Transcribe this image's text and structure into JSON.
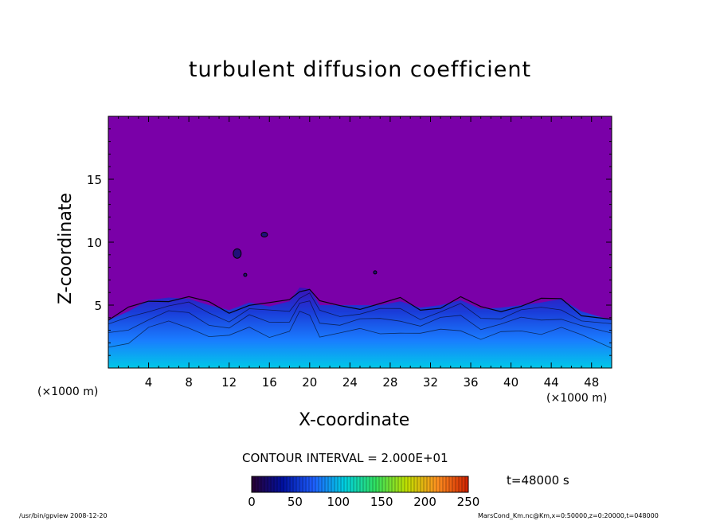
{
  "chart_data": {
    "type": "heatmap",
    "title": "turbulent diffusion coefficient",
    "xlabel": "X-coordinate",
    "ylabel": "Z-coordinate",
    "x_unit": "(×1000 m)",
    "y_unit": "(×1000 m)",
    "xlim": [
      0,
      50
    ],
    "ylim": [
      0,
      20
    ],
    "x_ticks": [
      4,
      8,
      12,
      16,
      20,
      24,
      28,
      32,
      36,
      40,
      44,
      48
    ],
    "y_ticks": [
      5,
      10,
      15
    ],
    "contour_interval": "CONTOUR INTERVAL = 2.000E+01",
    "time_label": "t=48000 s",
    "colorbar": {
      "min": 0,
      "max": 250,
      "ticks": [
        0,
        50,
        100,
        150,
        200,
        250
      ],
      "colors": [
        "#2a0033",
        "#0010a0",
        "#1e5fff",
        "#00d0e0",
        "#30e060",
        "#c0e000",
        "#ff9020",
        "#d02000"
      ]
    },
    "background_color": "#7a00a8",
    "turbulent_layer_top": [
      [
        0,
        3.8
      ],
      [
        2,
        4.5
      ],
      [
        4,
        5.4
      ],
      [
        6,
        5.6
      ],
      [
        8,
        5.5
      ],
      [
        10,
        5.0
      ],
      [
        12,
        4.6
      ],
      [
        14,
        5.2
      ],
      [
        16,
        4.9
      ],
      [
        18,
        5.3
      ],
      [
        19,
        6.4
      ],
      [
        20,
        6.3
      ],
      [
        21,
        5.0
      ],
      [
        23,
        5.0
      ],
      [
        25,
        5.0
      ],
      [
        27,
        5.0
      ],
      [
        29,
        5.3
      ],
      [
        31,
        4.8
      ],
      [
        33,
        5.0
      ],
      [
        35,
        5.4
      ],
      [
        37,
        4.7
      ],
      [
        39,
        4.8
      ],
      [
        41,
        5.0
      ],
      [
        43,
        5.2
      ],
      [
        45,
        5.5
      ],
      [
        47,
        4.5
      ],
      [
        50,
        3.8
      ]
    ],
    "footer": {
      "left": "/usr/bin/gpview   2008-12-20",
      "right": "MarsCond_Km.nc@Km,x=0:50000,z=0:20000,t=048000"
    }
  }
}
